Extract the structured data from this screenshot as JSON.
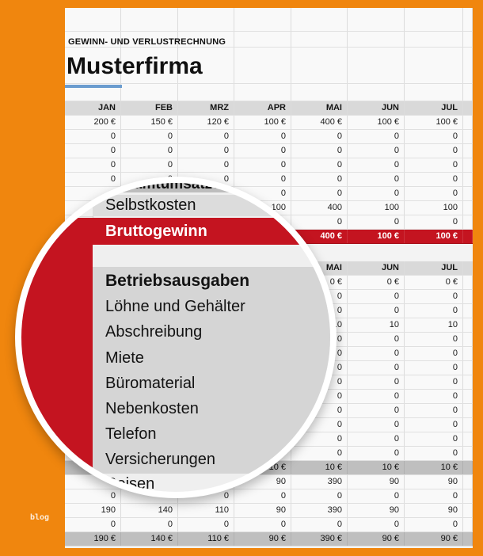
{
  "document": {
    "subtitle": "GEWINN- UND VERLUSTRECHNUNG",
    "title": "Musterfirma"
  },
  "watermark": "blog",
  "colors": {
    "orange": "#F0860E",
    "red": "#C41420",
    "blue": "#6B9CCF",
    "header_gray": "#D9D9D9",
    "total_gray": "#BFBFBF"
  },
  "magnifier": {
    "band_total": "Gesamtumsätze",
    "band_plain": "Selbstkosten",
    "band_red": "Bruttogewinn",
    "section_label": "Betriebsausgaben",
    "expense_items": [
      "Löhne und Gehälter",
      "Abschreibung",
      "Miete",
      "Büromaterial",
      "Nebenkosten",
      "Telefon",
      "Versicherungen",
      "Reisen"
    ]
  },
  "table": {
    "section1": {
      "header": [
        "JAN",
        "FEB",
        "MRZ",
        "APR",
        "MAI",
        "JUN",
        "JUL"
      ],
      "rows": [
        {
          "type": "data",
          "cells": [
            "200 €",
            "150 €",
            "120 €",
            "100 €",
            "400 €",
            "100 €",
            "100 €"
          ]
        },
        {
          "type": "data",
          "cells": [
            "0",
            "0",
            "0",
            "0",
            "0",
            "0",
            "0"
          ]
        },
        {
          "type": "data",
          "cells": [
            "0",
            "0",
            "0",
            "0",
            "0",
            "0",
            "0"
          ]
        },
        {
          "type": "data",
          "cells": [
            "0",
            "0",
            "0",
            "0",
            "0",
            "0",
            "0"
          ]
        },
        {
          "type": "data",
          "cells": [
            "0",
            "0",
            "0",
            "0",
            "0",
            "0",
            "0"
          ]
        },
        {
          "type": "data",
          "cells": [
            "0",
            "",
            "",
            "0",
            "0",
            "0",
            "0"
          ]
        },
        {
          "type": "data",
          "cells": [
            "",
            "",
            "",
            "100",
            "400",
            "100",
            "100"
          ]
        },
        {
          "type": "data",
          "cells": [
            "",
            "",
            "",
            "",
            "0",
            "0",
            "0"
          ]
        },
        {
          "type": "red",
          "cells": [
            "",
            "",
            "",
            "",
            "400 €",
            "100 €",
            "100 €"
          ]
        }
      ]
    },
    "section2": {
      "header": [
        "",
        "",
        "",
        "",
        "MAI",
        "JUN",
        "JUL"
      ],
      "rows": [
        {
          "type": "data",
          "cells": [
            "",
            "",
            "",
            "",
            "0 €",
            "0 €",
            "0 €"
          ]
        },
        {
          "type": "data",
          "cells": [
            "",
            "",
            "",
            "",
            "0",
            "0",
            "0"
          ]
        },
        {
          "type": "data",
          "cells": [
            "",
            "",
            "",
            "",
            "0",
            "0",
            "0"
          ]
        },
        {
          "type": "data",
          "cells": [
            "",
            "",
            "",
            "",
            "10",
            "10",
            "10"
          ]
        },
        {
          "type": "data",
          "cells": [
            "",
            "",
            "",
            "",
            "0",
            "0",
            "0"
          ]
        },
        {
          "type": "data",
          "cells": [
            "",
            "",
            "",
            "",
            "0",
            "0",
            "0"
          ]
        },
        {
          "type": "data",
          "cells": [
            "",
            "",
            "",
            "",
            "0",
            "0",
            "0"
          ]
        },
        {
          "type": "data",
          "cells": [
            "",
            "",
            "",
            "",
            "0",
            "0",
            "0"
          ]
        },
        {
          "type": "data",
          "cells": [
            "",
            "",
            "",
            "",
            "0",
            "0",
            "0"
          ]
        },
        {
          "type": "data",
          "cells": [
            "",
            "",
            "",
            "",
            "0",
            "0",
            "0"
          ]
        },
        {
          "type": "data",
          "cells": [
            "",
            "",
            "",
            "",
            "0",
            "0",
            "0"
          ]
        },
        {
          "type": "data",
          "cells": [
            "",
            "",
            "",
            "",
            "0",
            "0",
            "0"
          ]
        },
        {
          "type": "data",
          "cells": [
            "",
            "",
            "",
            "",
            "0",
            "0",
            "0"
          ]
        },
        {
          "type": "total",
          "cells": [
            "",
            "",
            "",
            "10 €",
            "10 €",
            "10 €",
            "10 €"
          ]
        },
        {
          "type": "data",
          "cells": [
            "",
            "",
            "",
            "90",
            "390",
            "90",
            "90"
          ]
        },
        {
          "type": "data",
          "cells": [
            "0",
            "",
            "0",
            "0",
            "0",
            "0",
            "0"
          ]
        },
        {
          "type": "data",
          "cells": [
            "190",
            "140",
            "110",
            "90",
            "390",
            "90",
            "90"
          ]
        },
        {
          "type": "data",
          "cells": [
            "0",
            "0",
            "0",
            "0",
            "0",
            "0",
            "0"
          ]
        },
        {
          "type": "total",
          "cells": [
            "190 €",
            "140 €",
            "110 €",
            "90 €",
            "390 €",
            "90 €",
            "90 €"
          ]
        }
      ]
    }
  }
}
